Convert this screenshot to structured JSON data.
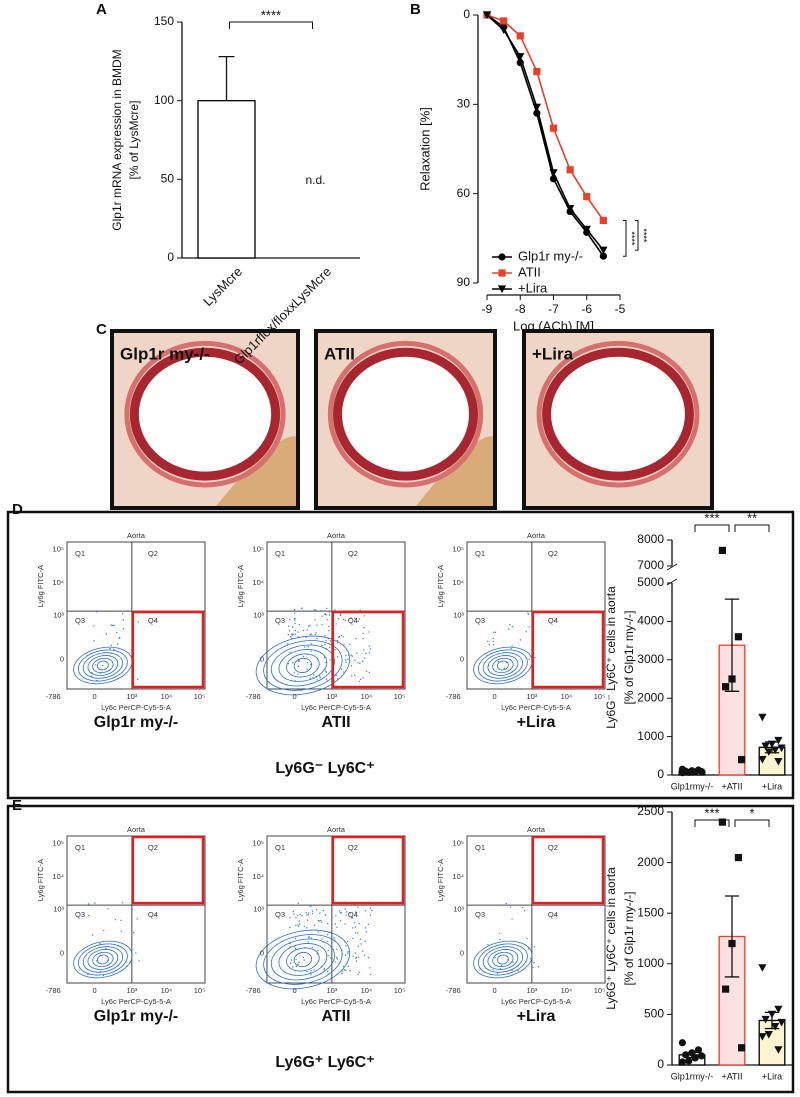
{
  "panel_labels": [
    "A",
    "B",
    "C",
    "D",
    "E"
  ],
  "chart_data": [
    {
      "type": "bar",
      "ylabel": [
        "Glp1r mRNA expression in BMDM",
        "[% of LysMcre]"
      ],
      "categories": [
        "LysMcre",
        "Glp1rflox/floxxLysMcre"
      ],
      "values": [
        100,
        null
      ],
      "errors": [
        28,
        null
      ],
      "value_labels": [
        null,
        "n.d."
      ],
      "error_bars": "upper",
      "colors": [
        "#ffffff",
        "#ffffff"
      ],
      "edge_colors": [
        "#000000",
        "#000000"
      ],
      "ylim": [
        0,
        150
      ],
      "yticks": [
        0,
        50,
        100,
        150
      ],
      "significance": [
        "****"
      ]
    },
    {
      "type": "line",
      "xlabel": "Log (ACh) [M]",
      "ylabel": "Relaxation [%]",
      "x": [
        -9,
        -8.5,
        -8,
        -7.5,
        -7,
        -6.5,
        -6,
        -5.5
      ],
      "series": [
        {
          "name": "Glp1r my-/-",
          "color": "#000000",
          "marker": "circle",
          "values": [
            0,
            4,
            16,
            33,
            55,
            66,
            73,
            81
          ]
        },
        {
          "name": "ATII",
          "color": "#e8402a",
          "marker": "square",
          "values": [
            0,
            2,
            7,
            19,
            38,
            52,
            61,
            69
          ]
        },
        {
          "name": "+Lira",
          "color": "#000000",
          "marker": "triangle-down",
          "values": [
            0,
            5,
            14,
            31,
            53,
            65,
            72,
            79
          ]
        }
      ],
      "xlim": [
        -9,
        -5
      ],
      "xticks": [
        -9,
        -8,
        -7,
        -6,
        -5
      ],
      "ylim": [
        0,
        90
      ],
      "yticks": [
        0,
        30,
        60,
        90
      ],
      "invert_y": true,
      "legend": "lower left",
      "significance": [
        "****",
        "****"
      ]
    },
    {
      "type": "bar",
      "ylabel": [
        "Ly6G⁻ Ly6C⁺ cells in aorta",
        "[% of Glp1r my-/-]"
      ],
      "categories": [
        "Glp1rmy-/-",
        "+ATII",
        "+Lira"
      ],
      "values": [
        100,
        3380,
        720
      ],
      "errors": [
        15,
        1200,
        140
      ],
      "points": [
        [
          150,
          130,
          110,
          100,
          90,
          80,
          70,
          60
        ],
        [
          7600,
          3600,
          2500,
          2300,
          400
        ],
        [
          1500,
          900,
          800,
          750,
          700,
          650,
          600,
          400,
          350
        ]
      ],
      "point_markers": [
        "circle",
        "square",
        "triangle-down"
      ],
      "error_bars": "both",
      "colors": [
        "#ffffff",
        "#fbe1e1",
        "#fdf4d2"
      ],
      "edge_colors": [
        "#000000",
        "#e8402a",
        "#000000"
      ],
      "ylim": [
        0,
        8000
      ],
      "y_break": [
        5000,
        7000
      ],
      "yticks": [
        0,
        1000,
        2000,
        3000,
        4000,
        5000,
        7000,
        8000
      ],
      "significance": [
        "***",
        "**"
      ]
    },
    {
      "type": "bar",
      "ylabel": [
        "Ly6G⁺ Ly6C⁺ cells in aorta",
        "[% of Glp1r my-/-]"
      ],
      "categories": [
        "Glp1rmy-/-",
        "+ATII",
        "+Lira"
      ],
      "values": [
        100,
        1270,
        440
      ],
      "errors": [
        25,
        400,
        80
      ],
      "points": [
        [
          220,
          150,
          120,
          100,
          90,
          70,
          40,
          30
        ],
        [
          2400,
          2050,
          1200,
          750,
          170
        ],
        [
          960,
          550,
          500,
          450,
          420,
          380,
          300,
          280,
          150
        ]
      ],
      "point_markers": [
        "circle",
        "square",
        "triangle-down"
      ],
      "error_bars": "both",
      "colors": [
        "#ffffff",
        "#fbe1e1",
        "#fdf4d2"
      ],
      "edge_colors": [
        "#000000",
        "#e8402a",
        "#000000"
      ],
      "ylim": [
        0,
        2500
      ],
      "yticks": [
        0,
        500,
        1000,
        1500,
        2000,
        2500
      ],
      "significance": [
        "***",
        "*"
      ]
    }
  ],
  "histology": {
    "labels": [
      "Glp1r my-/-",
      "ATII",
      "+Lira"
    ]
  },
  "flow": {
    "title": "Aorta",
    "quadrants": [
      "Q1",
      "Q2",
      "Q3",
      "Q4"
    ],
    "x_label": "Ly6c PerCP-Cy5-5-A",
    "y_label": "Ly6g FITC-A",
    "axis_ticks": [
      "-786",
      "0",
      "10³",
      "10⁴",
      "10⁵"
    ]
  },
  "populations": [
    {
      "label": "Ly6G⁻ Ly6C⁺",
      "highlight": "Q4",
      "groups": [
        "Glp1r my-/-",
        "ATII",
        "+Lira"
      ]
    },
    {
      "label": "Ly6G⁺ Ly6C⁺",
      "highlight": "Q2",
      "groups": [
        "Glp1r my-/-",
        "ATII",
        "+Lira"
      ]
    }
  ]
}
